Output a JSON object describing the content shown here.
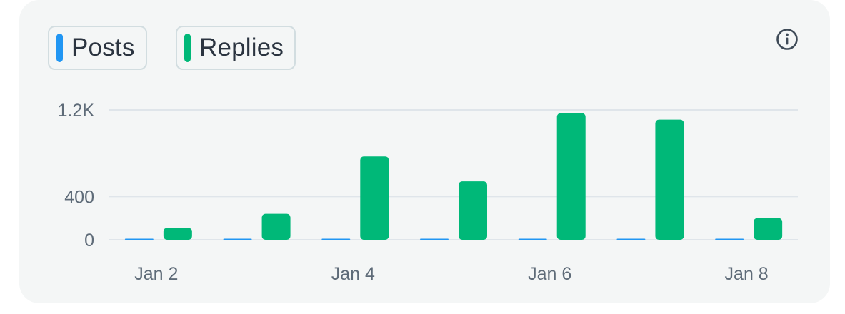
{
  "legend": {
    "posts_label": "Posts",
    "replies_label": "Replies"
  },
  "icons": {
    "info": "info-circle-icon"
  },
  "colors": {
    "posts": "#2196f3",
    "replies": "#00b878",
    "grid": "#dfe5ea",
    "card_background": "#f4f6f6"
  },
  "chart_data": {
    "type": "bar",
    "categories": [
      "Jan 2",
      "Jan 3",
      "Jan 4",
      "Jan 5",
      "Jan 6",
      "Jan 7",
      "Jan 8"
    ],
    "x_tick_labels": [
      "Jan 2",
      "Jan 4",
      "Jan 6",
      "Jan 8"
    ],
    "series": [
      {
        "name": "Posts",
        "values": [
          3,
          3,
          4,
          3,
          4,
          3,
          3
        ]
      },
      {
        "name": "Replies",
        "values": [
          110,
          240,
          770,
          540,
          1170,
          1110,
          200
        ]
      }
    ],
    "y_ticks": [
      0,
      400,
      1200
    ],
    "y_tick_labels": [
      "0",
      "400",
      "1.2K"
    ],
    "ylim": [
      0,
      1200
    ],
    "grid": true,
    "legend_position": "top-left"
  }
}
